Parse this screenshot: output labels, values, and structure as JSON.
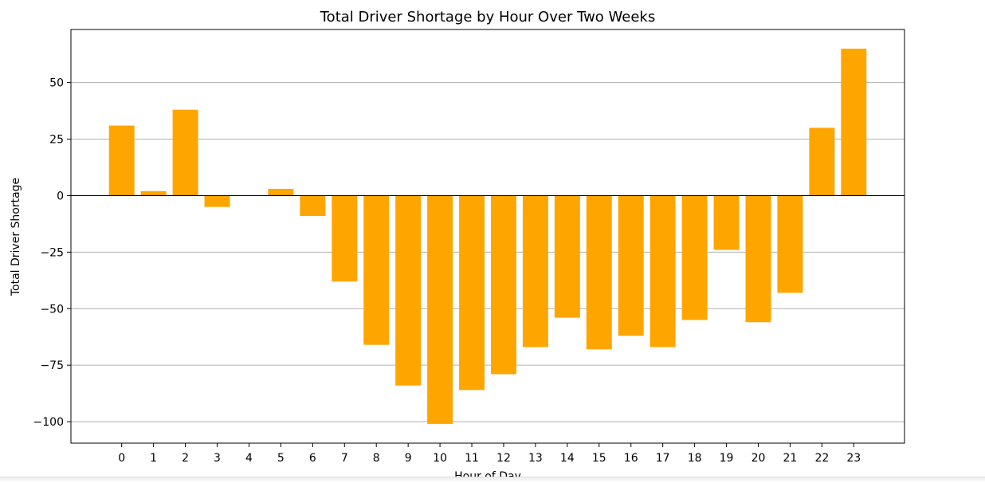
{
  "chart_data": {
    "type": "bar",
    "title": "Total Driver Shortage by Hour Over Two Weeks",
    "xlabel": "Hour of Day",
    "ylabel": "Total Driver Shortage",
    "categories": [
      "0",
      "1",
      "2",
      "3",
      "4",
      "5",
      "6",
      "7",
      "8",
      "9",
      "10",
      "11",
      "12",
      "13",
      "14",
      "15",
      "16",
      "17",
      "18",
      "19",
      "20",
      "21",
      "22",
      "23"
    ],
    "values": [
      31,
      2,
      38,
      -5,
      0,
      3,
      -9,
      -38,
      -66,
      -84,
      -101,
      -86,
      -79,
      -67,
      -54,
      -68,
      -62,
      -67,
      -55,
      -24,
      -56,
      -43,
      30,
      65
    ],
    "yticks": [
      50,
      25,
      0,
      -25,
      -50,
      -75,
      -100
    ],
    "ytick_labels": [
      "50",
      "25",
      "0",
      "−25",
      "−50",
      "−75",
      "−100"
    ],
    "ylim": [
      -109.5,
      73.5
    ],
    "grid": "y",
    "zero_line": true,
    "bar_color": "#ffa500",
    "legend": "none"
  }
}
